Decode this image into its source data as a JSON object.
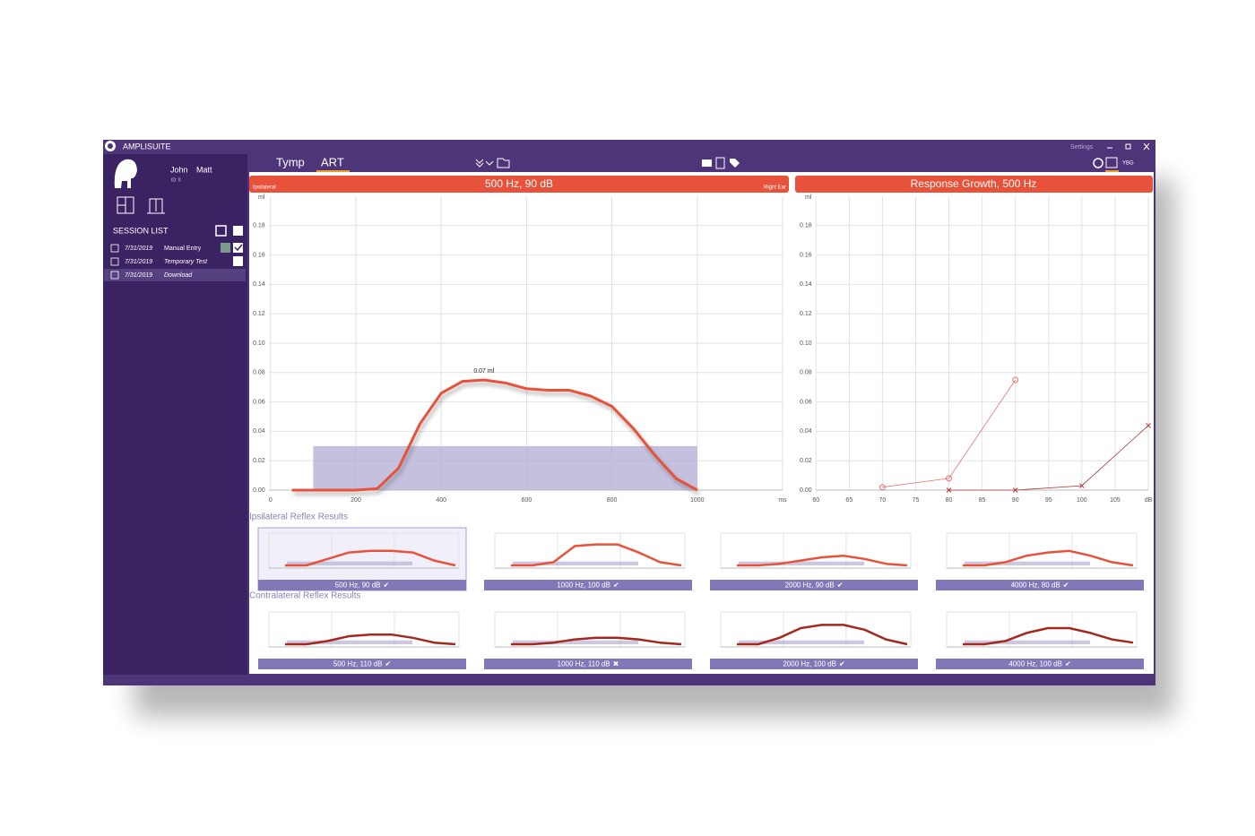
{
  "app": {
    "title": "AMPLISUITE",
    "settings": "Settings",
    "indicator": "YBG"
  },
  "patient": {
    "first_name": "John",
    "last_name": "Matt",
    "id": "ID: 0"
  },
  "session_list": {
    "title": "SESSION LIST",
    "sessions": [
      {
        "date": "7/31/2019",
        "name": "Manual Entry"
      },
      {
        "date": "7/31/2019",
        "name": "Temporary Test"
      },
      {
        "date": "7/31/2019",
        "name": "Download"
      }
    ]
  },
  "tabs": [
    "Tymp",
    "ART"
  ],
  "chart_data": [
    {
      "type": "line",
      "title": "500 Hz, 90 dB",
      "left_label": "Ipsilateral",
      "right_label": "Right Ear",
      "y_label": "ml",
      "x_label": "ms",
      "annotation": "0.07 ml",
      "xlim": [
        -50,
        1200
      ],
      "xticks": [
        0,
        200,
        400,
        600,
        800,
        1000
      ],
      "ylim": [
        0,
        0.2
      ],
      "yticks": [
        {
          "value": 0,
          "label": "0.00"
        },
        0.02,
        0.04,
        0.06,
        0.08,
        {
          "value": 0.1,
          "label": "0.10"
        },
        0.12,
        0.14,
        0.16,
        0.18
      ],
      "band": {
        "x": [
          100,
          1000
        ],
        "top": 0.03,
        "color": "#b7b0d6"
      },
      "series": [
        {
          "color": "#e8523a",
          "x": [
            50,
            200,
            250,
            300,
            350,
            400,
            450,
            500,
            550,
            600,
            650,
            700,
            750,
            800,
            850,
            900,
            950,
            1000
          ],
          "values": [
            0,
            0,
            0.001,
            0.015,
            0.045,
            0.066,
            0.074,
            0.075,
            0.073,
            0.069,
            0.068,
            0.068,
            0.064,
            0.057,
            0.042,
            0.024,
            0.008,
            0
          ]
        }
      ]
    },
    {
      "type": "line",
      "title": "Response Growth, 500 Hz",
      "y_label": "ml",
      "x_label": "dB",
      "xlim": [
        57,
        110
      ],
      "xticks": [
        60,
        65,
        70,
        75,
        80,
        85,
        90,
        95,
        100,
        105
      ],
      "ylim": [
        0,
        0.2
      ],
      "yticks": [
        {
          "value": 0,
          "label": "0.00"
        },
        0.02,
        0.04,
        0.06,
        0.08,
        {
          "value": 0.1,
          "label": "0.10"
        },
        0.12,
        0.14,
        0.16,
        0.18
      ],
      "series": [
        {
          "color": "#e87070",
          "marker": "circle",
          "x": [
            70,
            80,
            90
          ],
          "values": [
            0.002,
            0.008,
            0.075
          ]
        },
        {
          "color": "#b03a3a",
          "marker": "x",
          "x": [
            80,
            90,
            100,
            110
          ],
          "values": [
            0,
            0,
            0.003,
            0.044
          ]
        }
      ]
    }
  ],
  "reflex_results": {
    "ylim": [
      0,
      0.1
    ],
    "band_color": "#b7b0d6",
    "groups": [
      {
        "title": "Ipsilateral Reflex Results",
        "color": "#e8523a",
        "items": [
          {
            "label": "500 Hz, 90 dB",
            "status": "✔",
            "values": [
              0,
              0,
              0.02,
              0.04,
              0.045,
              0.045,
              0.04,
              0.015,
              0
            ]
          },
          {
            "label": "1000 Hz, 100 dB",
            "status": "✔",
            "values": [
              0,
              0,
              0.01,
              0.06,
              0.065,
              0.065,
              0.04,
              0.01,
              0
            ]
          },
          {
            "label": "2000 Hz, 90 dB",
            "status": "✔",
            "values": [
              0,
              0,
              0.005,
              0.015,
              0.025,
              0.03,
              0.02,
              0.005,
              0
            ]
          },
          {
            "label": "4000 Hz, 80 dB",
            "status": "✔",
            "values": [
              0,
              0,
              0.01,
              0.03,
              0.04,
              0.045,
              0.03,
              0.01,
              0
            ]
          }
        ]
      },
      {
        "title": "Contralateral Reflex Results",
        "color": "#a3291e",
        "items": [
          {
            "label": "500 Hz, 110 dB",
            "status": "✔",
            "values": [
              0,
              0,
              0.01,
              0.025,
              0.03,
              0.03,
              0.02,
              0.005,
              0
            ]
          },
          {
            "label": "1000 Hz, 110 dB",
            "status": "✖",
            "values": [
              0,
              0,
              0.005,
              0.015,
              0.02,
              0.02,
              0.015,
              0.005,
              0
            ]
          },
          {
            "label": "2000 Hz, 100 dB",
            "status": "✔",
            "values": [
              0,
              0,
              0.02,
              0.05,
              0.06,
              0.06,
              0.045,
              0.015,
              0
            ]
          },
          {
            "label": "4000 Hz, 100 dB",
            "status": "✔",
            "values": [
              0,
              0,
              0.01,
              0.035,
              0.05,
              0.05,
              0.035,
              0.015,
              0.005
            ]
          }
        ]
      }
    ]
  }
}
